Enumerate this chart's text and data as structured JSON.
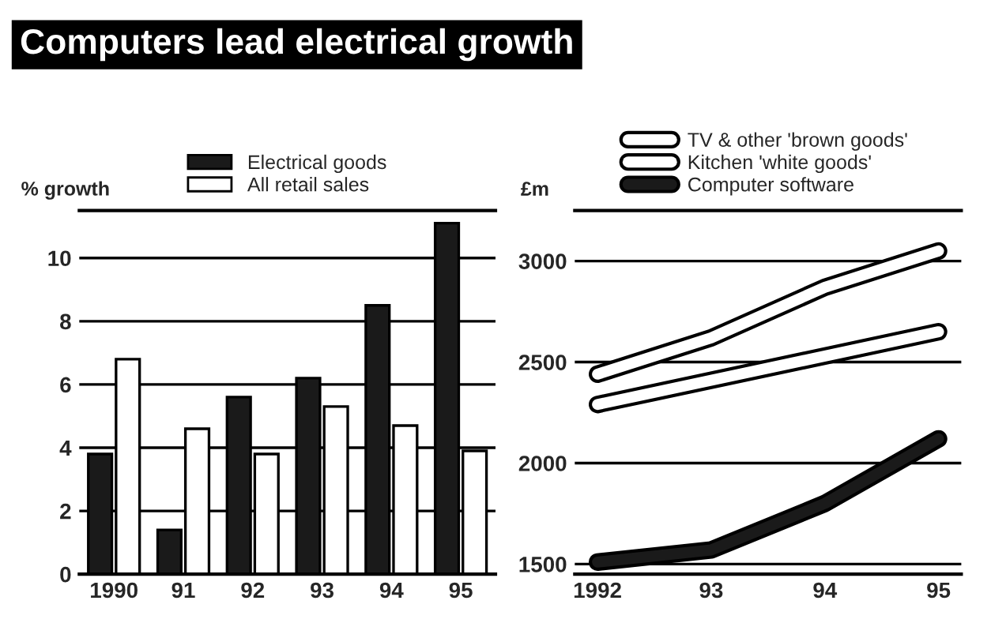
{
  "chart_data": [
    {
      "type": "bar",
      "title": "Computers lead electrical growth",
      "ylabel": "% growth",
      "categories": [
        "1990",
        "91",
        "92",
        "93",
        "94",
        "95"
      ],
      "series": [
        {
          "name": "Electrical goods",
          "color": "#1a1a1a",
          "values": [
            3.8,
            1.4,
            5.6,
            6.2,
            8.5,
            11.1
          ]
        },
        {
          "name": "All retail sales",
          "color": "#ffffff",
          "values": [
            6.8,
            4.6,
            3.8,
            5.3,
            4.7,
            3.9
          ]
        }
      ],
      "ylim": [
        0,
        11.5
      ],
      "yticks": [
        0,
        2,
        4,
        6,
        8,
        10
      ],
      "grid": "y",
      "legend": "top"
    },
    {
      "type": "line",
      "ylabel": "£m",
      "x": [
        1992,
        1993,
        1994,
        1995
      ],
      "series": [
        {
          "name": "TV & other 'brown goods'",
          "color": "#ffffff",
          "values": [
            2440,
            2620,
            2870,
            3050
          ]
        },
        {
          "name": "Kitchen 'white goods'",
          "color": "#ffffff",
          "x": [
            1992,
            1995
          ],
          "values": [
            2290,
            2650
          ]
        },
        {
          "name": "Computer software",
          "color": "#1a1a1a",
          "values": [
            1510,
            1570,
            1800,
            2120
          ]
        }
      ],
      "xlim": [
        1991.8,
        1995.2
      ],
      "xticks": [
        {
          "value": 1992,
          "label": "1992"
        },
        {
          "value": 1993,
          "label": "93"
        },
        {
          "value": 1994,
          "label": "94"
        },
        {
          "value": 1995,
          "label": "95"
        }
      ],
      "ylim": [
        1450,
        3250
      ],
      "yticks": [
        1500,
        2000,
        2500,
        3000
      ],
      "grid": "y",
      "legend": "top"
    }
  ]
}
